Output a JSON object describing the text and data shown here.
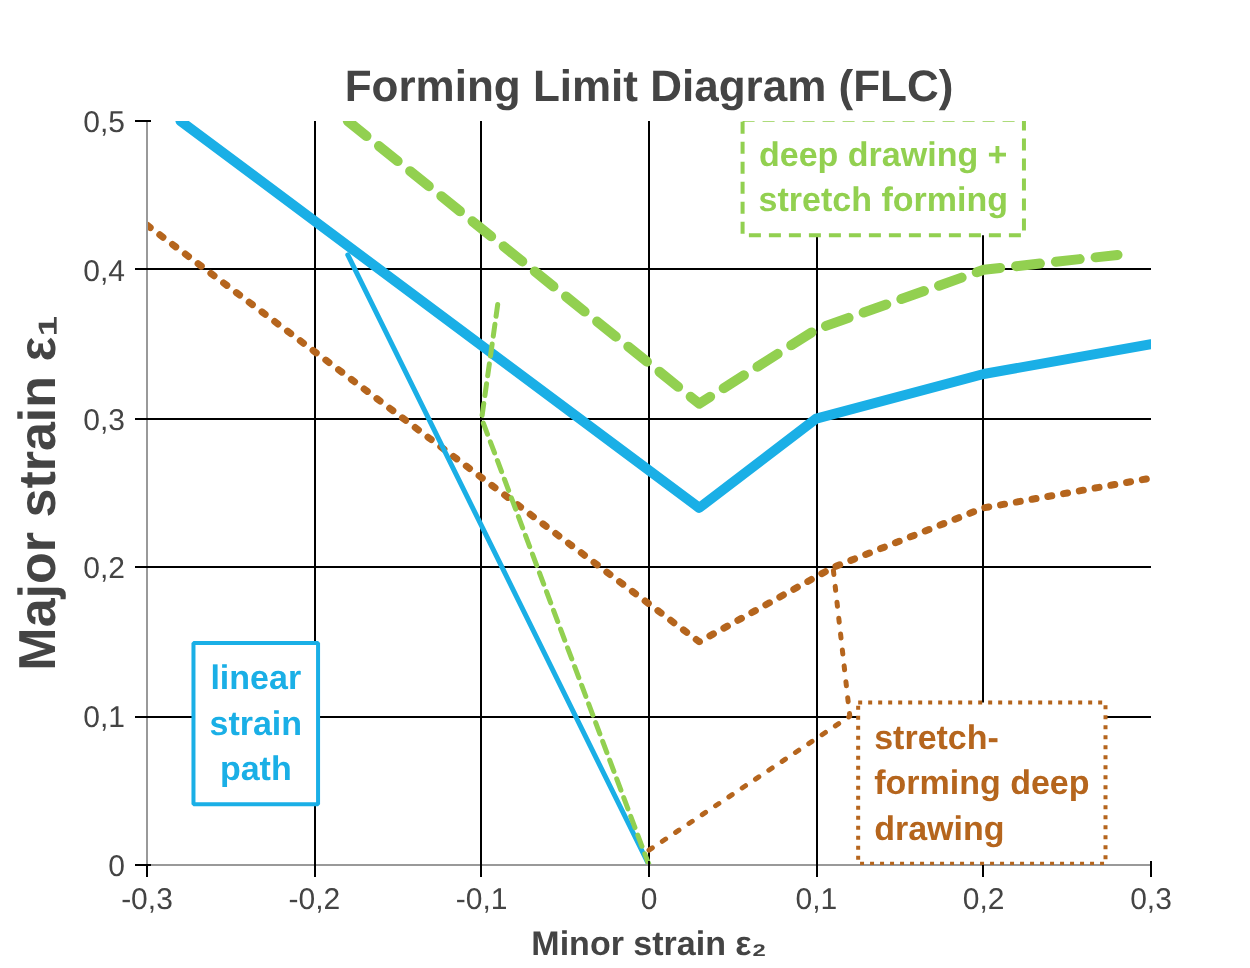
{
  "chart_data": {
    "type": "line",
    "title": "Forming Limit Diagram (FLC)",
    "xlabel": "Minor strain ε₂",
    "ylabel": "Major strain ε₁",
    "xlim": [
      -0.3,
      0.3
    ],
    "ylim": [
      0,
      0.5
    ],
    "xticks": [
      {
        "value": -0.3,
        "label": "-0,3"
      },
      {
        "value": -0.2,
        "label": "-0,2"
      },
      {
        "value": -0.1,
        "label": "-0,1"
      },
      0,
      {
        "value": 0.1,
        "label": "0,1"
      },
      {
        "value": 0.2,
        "label": "0,2"
      },
      {
        "value": 0.3,
        "label": "0,3"
      }
    ],
    "yticks": [
      0,
      {
        "value": 0.1,
        "label": "0,1"
      },
      {
        "value": 0.2,
        "label": "0,2"
      },
      {
        "value": 0.3,
        "label": "0,3"
      },
      {
        "value": 0.4,
        "label": "0,4"
      },
      {
        "value": 0.5,
        "label": "0,5"
      }
    ],
    "grid": true,
    "series": [
      {
        "color": "#1aafe6",
        "line_style": "solid",
        "x": [
          -0.28,
          0.03,
          0.1,
          0.2,
          0.3
        ],
        "values": [
          0.5,
          0.24,
          0.3,
          0.33,
          0.35
        ]
      },
      {
        "color": "#92d050",
        "line_style": "dashed",
        "x": [
          -0.18,
          0.03,
          0.1,
          0.2,
          0.28
        ],
        "values": [
          0.5,
          0.31,
          0.36,
          0.4,
          0.41
        ]
      },
      {
        "color": "#b5651d",
        "line_style": "dotted",
        "x": [
          -0.3,
          0.03,
          0.11,
          0.2,
          0.3
        ],
        "values": [
          0.43,
          0.15,
          0.2,
          0.24,
          0.26
        ]
      },
      {
        "color": "#1aafe6",
        "line_style": "solid",
        "x": [
          0,
          -0.18
        ],
        "values": [
          0,
          0.41
        ]
      },
      {
        "color": "#92d050",
        "line_style": "dashed",
        "x": [
          0,
          -0.1,
          -0.09
        ],
        "values": [
          0,
          0.3,
          0.38
        ]
      },
      {
        "color": "#b5651d",
        "line_style": "dotted",
        "x": [
          0,
          0.12,
          0.11
        ],
        "values": [
          0.01,
          0.1,
          0.2
        ]
      }
    ],
    "annotations": [
      "deep drawing +\nstretch forming",
      "linear\nstrain\npath",
      "stretch-\nforming deep\ndrawing"
    ]
  }
}
